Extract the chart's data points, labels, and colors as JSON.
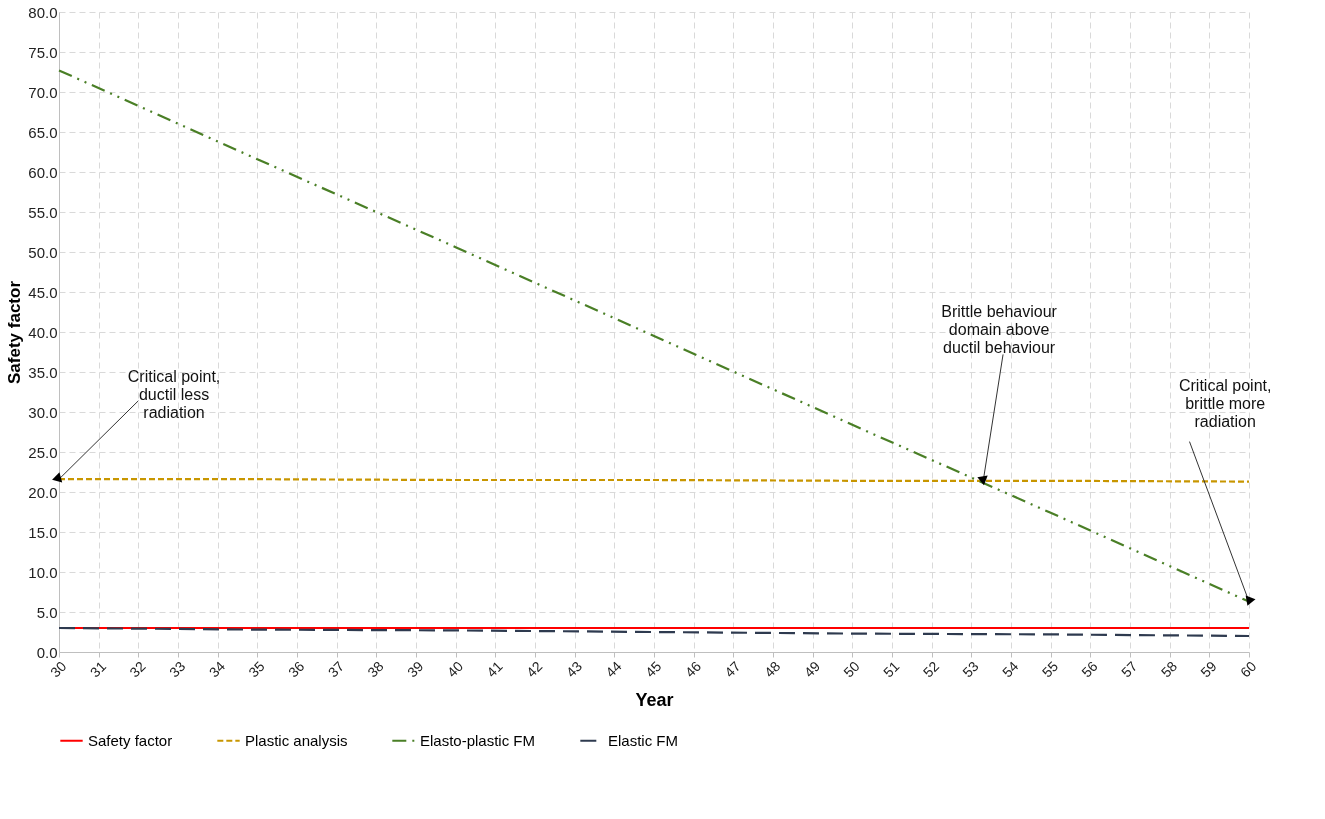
{
  "chart_data": {
    "type": "line",
    "xlabel": "Year",
    "ylabel": "Safety factor",
    "x": [
      30,
      35,
      40,
      45,
      50,
      55,
      60
    ],
    "series": [
      {
        "name": "Safety factor",
        "color": "#ff0000",
        "line_style": "solid",
        "values": [
          3.0,
          3.0,
          3.0,
          3.0,
          3.0,
          3.0,
          3.0
        ]
      },
      {
        "name": "Plastic analysis",
        "color": "#c89600",
        "line_style": "dashed",
        "values": [
          21.6,
          21.6,
          21.5,
          21.5,
          21.4,
          21.4,
          21.3
        ]
      },
      {
        "name": "Elasto-plastic FM",
        "color": "#4a7f26",
        "line_style": "dashdotdot",
        "values": [
          72.7,
          61.6,
          50.6,
          39.5,
          28.4,
          17.4,
          6.3
        ]
      },
      {
        "name": "Elastic FM",
        "color": "#2e3a4f",
        "line_style": "longdash",
        "values": [
          3.0,
          2.8,
          2.7,
          2.5,
          2.3,
          2.2,
          2.0
        ]
      }
    ],
    "xlim": [
      30,
      60
    ],
    "xticks": [
      30,
      31,
      32,
      33,
      34,
      35,
      36,
      37,
      38,
      39,
      40,
      41,
      42,
      43,
      44,
      45,
      46,
      47,
      48,
      49,
      50,
      51,
      52,
      53,
      54,
      55,
      56,
      57,
      58,
      59,
      60
    ],
    "ylim": [
      0,
      80
    ],
    "yticks": [
      {
        "value": 0,
        "label": "0.0"
      },
      {
        "value": 5,
        "label": "5.0"
      },
      {
        "value": 10,
        "label": "10.0"
      },
      {
        "value": 15,
        "label": "15.0"
      },
      {
        "value": 20,
        "label": "20.0"
      },
      {
        "value": 25,
        "label": "25.0"
      },
      {
        "value": 30,
        "label": "30.0"
      },
      {
        "value": 35,
        "label": "35.0"
      },
      {
        "value": 40,
        "label": "40.0"
      },
      {
        "value": 45,
        "label": "45.0"
      },
      {
        "value": 50,
        "label": "50.0"
      },
      {
        "value": 55,
        "label": "55.0"
      },
      {
        "value": 60,
        "label": "60.0"
      },
      {
        "value": 65,
        "label": "65.0"
      },
      {
        "value": 70,
        "label": "70.0"
      },
      {
        "value": 75,
        "label": "75.0"
      },
      {
        "value": 80,
        "label": "80.0"
      }
    ],
    "annotations": [
      {
        "text": "Critical point,\nductil less\nradiation",
        "x": 30,
        "y": 21.6
      },
      {
        "text": "Brittle behaviour\ndomain above\nductil behaviour",
        "x": 53.3,
        "y": 21.4
      },
      {
        "text": "Critical point,\nbrittle more\nradiation",
        "x": 60,
        "y": 6.3
      }
    ],
    "grid": true,
    "legend": "bottom",
    "marker": "none"
  }
}
